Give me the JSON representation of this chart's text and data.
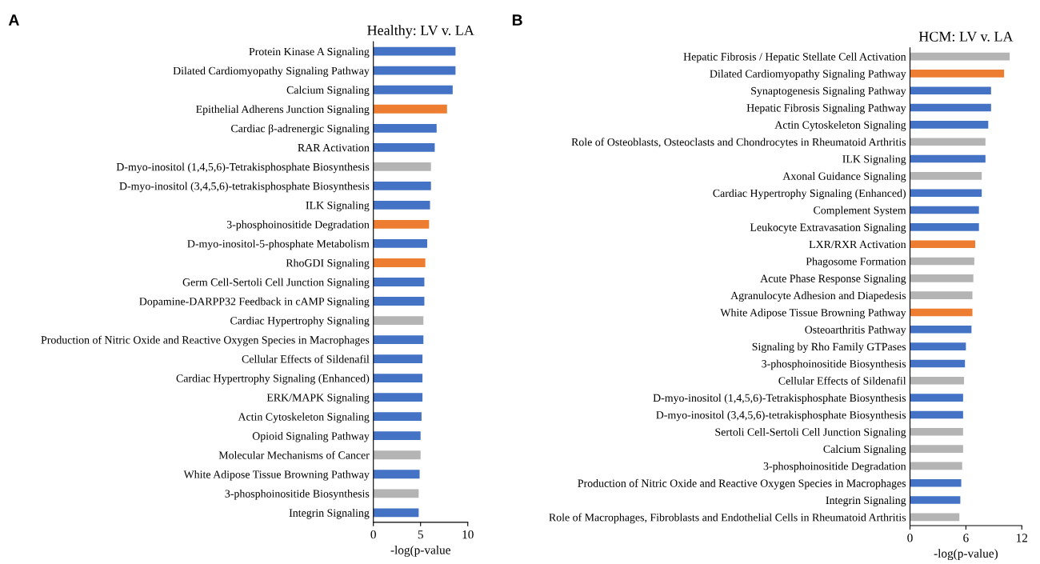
{
  "chart_data": [
    {
      "type": "bar",
      "orientation": "horizontal",
      "title": "Healthy: LV v. LA",
      "xlabel": "-log(p-value",
      "annotations": [
        "A"
      ],
      "categories": [
        "Protein Kinase A Signaling",
        "Dilated Cardiomyopathy Signaling Pathway",
        "Calcium Signaling",
        "Epithelial Adherens Junction Signaling",
        "Cardiac β-adrenergic Signaling",
        "RAR Activation",
        "D-myo-inositol (1,4,5,6)-Tetrakisphosphate Biosynthesis",
        "D-myo-inositol (3,4,5,6)-tetrakisphosphate Biosynthesis",
        "ILK Signaling",
        "3-phosphoinositide Degradation",
        "D-myo-inositol-5-phosphate Metabolism",
        "RhoGDI Signaling",
        "Germ Cell-Sertoli Cell Junction Signaling",
        "Dopamine-DARPP32 Feedback in cAMP Signaling",
        "Cardiac Hypertrophy Signaling",
        "Production of Nitric Oxide and Reactive Oxygen Species in Macrophages",
        "Cellular Effects of Sildenafil",
        "Cardiac Hypertrophy Signaling (Enhanced)",
        "ERK/MAPK Signaling",
        "Actin Cytoskeleton Signaling",
        "Opioid Signaling Pathway",
        "Molecular Mechanisms of Cancer",
        "White Adipose Tissue Browning Pathway",
        "3-phosphoinositide Biosynthesis",
        "Integrin Signaling"
      ],
      "values": [
        8.7,
        8.7,
        8.4,
        7.8,
        6.7,
        6.5,
        6.1,
        6.1,
        6.0,
        5.9,
        5.7,
        5.5,
        5.4,
        5.4,
        5.3,
        5.3,
        5.2,
        5.2,
        5.2,
        5.1,
        5.0,
        5.0,
        4.9,
        4.8,
        4.8
      ],
      "colors": [
        "#4472c4",
        "#4472c4",
        "#4472c4",
        "#ed7d31",
        "#4472c4",
        "#4472c4",
        "#b4b4b4",
        "#4472c4",
        "#4472c4",
        "#ed7d31",
        "#4472c4",
        "#ed7d31",
        "#4472c4",
        "#4472c4",
        "#b4b4b4",
        "#4472c4",
        "#4472c4",
        "#4472c4",
        "#4472c4",
        "#4472c4",
        "#4472c4",
        "#b4b4b4",
        "#4472c4",
        "#b4b4b4",
        "#4472c4"
      ],
      "xlim": [
        0,
        10
      ],
      "xticks": [
        0,
        5,
        10
      ]
    },
    {
      "type": "bar",
      "orientation": "horizontal",
      "title": "HCM: LV v. LA",
      "xlabel": "-log(p-value)",
      "annotations": [
        "B"
      ],
      "categories": [
        "Hepatic Fibrosis / Hepatic Stellate Cell Activation",
        "Dilated Cardiomyopathy Signaling Pathway",
        "Synaptogenesis Signaling Pathway",
        "Hepatic Fibrosis Signaling Pathway",
        "Actin Cytoskeleton Signaling",
        "Role of Osteoblasts, Osteoclasts and Chondrocytes in Rheumatoid Arthritis",
        "ILK Signaling",
        "Axonal Guidance Signaling",
        "Cardiac Hypertrophy Signaling (Enhanced)",
        "Complement System",
        "Leukocyte Extravasation Signaling",
        "LXR/RXR Activation",
        "Phagosome Formation",
        "Acute Phase Response Signaling",
        "Agranulocyte Adhesion and Diapedesis",
        "White Adipose Tissue Browning Pathway",
        "Osteoarthritis Pathway",
        "Signaling by Rho Family GTPases",
        "3-phosphoinositide Biosynthesis",
        "Cellular Effects of Sildenafil",
        "D-myo-inositol (1,4,5,6)-Tetrakisphosphate Biosynthesis",
        "D-myo-inositol (3,4,5,6)-tetrakisphosphate Biosynthesis",
        "Sertoli Cell-Sertoli Cell Junction Signaling",
        "Calcium Signaling",
        "3-phosphoinositide Degradation",
        "Production of Nitric Oxide and Reactive Oxygen Species in Macrophages",
        "Integrin Signaling",
        "Role of Macrophages, Fibroblasts and Endothelial Cells in Rheumatoid Arthritis"
      ],
      "values": [
        10.7,
        10.1,
        8.7,
        8.7,
        8.4,
        8.1,
        8.1,
        7.7,
        7.7,
        7.4,
        7.4,
        7.0,
        6.9,
        6.8,
        6.7,
        6.7,
        6.6,
        6.0,
        5.9,
        5.8,
        5.7,
        5.7,
        5.7,
        5.7,
        5.6,
        5.5,
        5.4,
        5.3
      ],
      "colors": [
        "#b4b4b4",
        "#ed7d31",
        "#4472c4",
        "#4472c4",
        "#4472c4",
        "#b4b4b4",
        "#4472c4",
        "#b4b4b4",
        "#4472c4",
        "#4472c4",
        "#4472c4",
        "#ed7d31",
        "#b4b4b4",
        "#b4b4b4",
        "#b4b4b4",
        "#ed7d31",
        "#4472c4",
        "#4472c4",
        "#4472c4",
        "#b4b4b4",
        "#4472c4",
        "#4472c4",
        "#b4b4b4",
        "#b4b4b4",
        "#b4b4b4",
        "#4472c4",
        "#4472c4",
        "#b4b4b4"
      ],
      "xlim": [
        0,
        12
      ],
      "xticks": [
        0,
        6,
        12
      ]
    }
  ]
}
